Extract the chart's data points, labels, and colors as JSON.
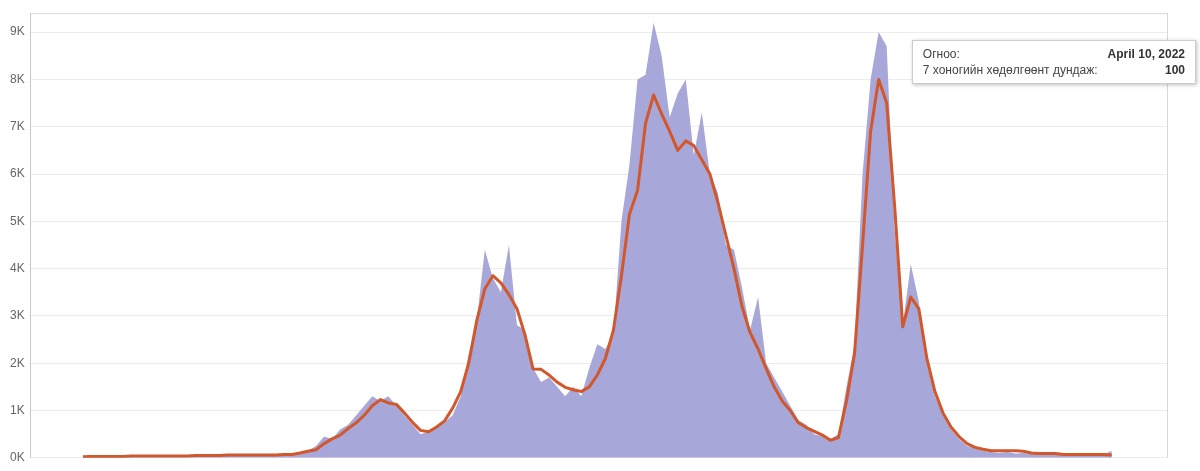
{
  "chart_data": {
    "type": "area",
    "categories": [
      null,
      null,
      null,
      null,
      null,
      null,
      null,
      null,
      null,
      null,
      null,
      null,
      null,
      null,
      null,
      null,
      null,
      null,
      null,
      null,
      null,
      null,
      null,
      null,
      null,
      null,
      null,
      null,
      null,
      null,
      null,
      null,
      null,
      null,
      null,
      null,
      null,
      null,
      null,
      null,
      null,
      null,
      null,
      null,
      null,
      null,
      null,
      null,
      null,
      null,
      null,
      null,
      null,
      null,
      null,
      null,
      null,
      null,
      null,
      null,
      null,
      null,
      null,
      null,
      null,
      null,
      null,
      null,
      null,
      null,
      null,
      null,
      null,
      null,
      null,
      null,
      null,
      null,
      null,
      null,
      null,
      null,
      null,
      null,
      null,
      null,
      null,
      null,
      null,
      null,
      null,
      null,
      null,
      null,
      null,
      null,
      null,
      null,
      null,
      null,
      null,
      null,
      null,
      null,
      null,
      null,
      null,
      null,
      null,
      null,
      null,
      null,
      null,
      null,
      null,
      null,
      null,
      null,
      null,
      null,
      null,
      null,
      null,
      null,
      null,
      null,
      null,
      null,
      null
    ],
    "series": [
      {
        "color": "#a8a7d9",
        "values": [
          10,
          20,
          30,
          20,
          40,
          30,
          40,
          30,
          40,
          30,
          40,
          50,
          30,
          40,
          50,
          40,
          60,
          40,
          50,
          60,
          50,
          60,
          70,
          50,
          60,
          80,
          80,
          100,
          150,
          250,
          450,
          400,
          600,
          700,
          900,
          1100,
          1300,
          1200,
          1300,
          1100,
          900,
          700,
          500,
          550,
          650,
          750,
          900,
          1300,
          2200,
          2900,
          4400,
          3800,
          3500,
          4500,
          2800,
          2700,
          1900,
          1600,
          1700,
          1500,
          1300,
          1500,
          1300,
          1900,
          2400,
          2300,
          2600,
          5000,
          6200,
          8000,
          8100,
          9200,
          8500,
          7200,
          7700,
          8000,
          6400,
          7300,
          6000,
          5600,
          4500,
          4400,
          3600,
          2700,
          3400,
          2000,
          1700,
          1400,
          1100,
          800,
          700,
          500,
          450,
          400,
          500,
          1500,
          2400,
          6000,
          8000,
          9000,
          8700,
          4800,
          2800,
          4100,
          3300,
          2000,
          1300,
          900,
          600,
          400,
          250,
          200,
          150,
          120,
          100,
          120,
          90,
          100,
          80,
          90,
          70,
          80,
          60,
          70,
          90,
          60,
          80,
          70,
          150
        ]
      },
      {
        "type": "line",
        "color": "#d2572b",
        "values": [
          20,
          30,
          30,
          30,
          30,
          30,
          40,
          40,
          40,
          40,
          40,
          40,
          40,
          40,
          50,
          50,
          50,
          50,
          60,
          60,
          60,
          60,
          60,
          60,
          60,
          70,
          70,
          100,
          140,
          170,
          300,
          400,
          480,
          620,
          740,
          900,
          1100,
          1230,
          1160,
          1130,
          950,
          750,
          580,
          550,
          650,
          780,
          1050,
          1400,
          2000,
          2900,
          3570,
          3850,
          3700,
          3450,
          3150,
          2600,
          1880,
          1870,
          1750,
          1600,
          1490,
          1440,
          1400,
          1500,
          1750,
          2100,
          2700,
          3850,
          5150,
          5650,
          7070,
          7670,
          7270,
          6900,
          6500,
          6700,
          6600,
          6300,
          6000,
          5400,
          4700,
          4000,
          3200,
          2650,
          2300,
          1890,
          1500,
          1200,
          1000,
          740,
          640,
          560,
          480,
          370,
          430,
          1200,
          2200,
          4500,
          6900,
          8000,
          7500,
          5300,
          2770,
          3400,
          3150,
          2100,
          1400,
          950,
          650,
          450,
          300,
          220,
          180,
          150,
          150,
          150,
          150,
          140,
          100,
          90,
          90,
          90,
          70,
          70,
          70,
          70,
          70,
          70,
          60
        ]
      }
    ],
    "ylim": [
      0,
      9400
    ],
    "yticks": [
      {
        "value": 0,
        "label": "0K"
      },
      {
        "value": 1000,
        "label": "1K"
      },
      {
        "value": 2000,
        "label": "2K"
      },
      {
        "value": 3000,
        "label": "3K"
      },
      {
        "value": 4000,
        "label": "4K"
      },
      {
        "value": 5000,
        "label": "5K"
      },
      {
        "value": 6000,
        "label": "6K"
      },
      {
        "value": 7000,
        "label": "7K"
      },
      {
        "value": 8000,
        "label": "8K"
      },
      {
        "value": 9000,
        "label": "9K"
      }
    ],
    "grid": "y",
    "annotations": [
      "Огноо:",
      "April 10, 2022",
      "7 хоногийн хөдөлгөөнт дундаж:",
      "100"
    ]
  }
}
